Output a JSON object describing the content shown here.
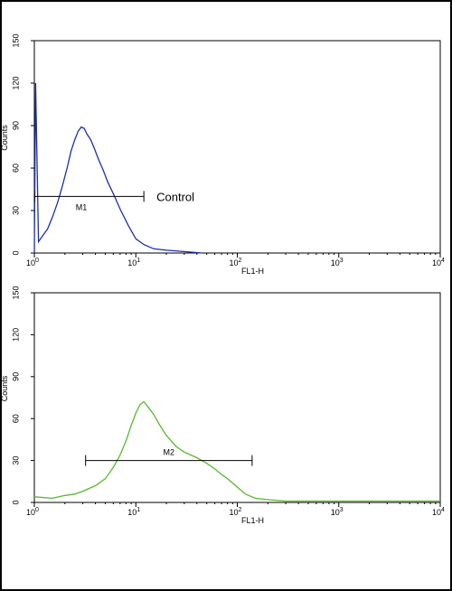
{
  "chart_data": [
    {
      "type": "line",
      "title": "",
      "xlabel": "FL1-H",
      "ylabel": "Counts",
      "x_scale": "log",
      "xlim": [
        1,
        10000
      ],
      "ylim": [
        0,
        150
      ],
      "yticks": [
        "0",
        "30",
        "60",
        "90",
        "120",
        "150"
      ],
      "xticks": [
        {
          "base": "10",
          "exp": "0"
        },
        {
          "base": "10",
          "exp": "1"
        },
        {
          "base": "10",
          "exp": "2"
        },
        {
          "base": "10",
          "exp": "3"
        },
        {
          "base": "10",
          "exp": "4"
        }
      ],
      "series": [
        {
          "color": "#1f2fa8",
          "x": [
            1.0,
            1.03,
            1.1,
            1.2,
            1.35,
            1.5,
            1.7,
            1.9,
            2.1,
            2.3,
            2.5,
            2.7,
            2.9,
            3.1,
            3.3,
            3.6,
            3.9,
            4.3,
            4.8,
            5.3,
            6.0,
            7.0,
            8.5,
            10,
            12,
            15,
            20,
            30,
            45
          ],
          "y": [
            0,
            120,
            8,
            12,
            17,
            25,
            36,
            48,
            60,
            72,
            80,
            86,
            89,
            88,
            84,
            80,
            74,
            66,
            58,
            50,
            42,
            31,
            19,
            10,
            6,
            3,
            2,
            1,
            0
          ]
        }
      ],
      "markers": [
        {
          "label": "M1",
          "x_start": 1.0,
          "x_end": 12,
          "y": 40
        }
      ],
      "annotation": "Control"
    },
    {
      "type": "line",
      "title": "",
      "xlabel": "FL1-H",
      "ylabel": "Counts",
      "x_scale": "log",
      "xlim": [
        1,
        10000
      ],
      "ylim": [
        0,
        150
      ],
      "yticks": [
        "0",
        "30",
        "60",
        "90",
        "120",
        "150"
      ],
      "xticks": [
        {
          "base": "10",
          "exp": "0"
        },
        {
          "base": "10",
          "exp": "1"
        },
        {
          "base": "10",
          "exp": "2"
        },
        {
          "base": "10",
          "exp": "3"
        },
        {
          "base": "10",
          "exp": "4"
        }
      ],
      "series": [
        {
          "color": "#5ab82c",
          "x": [
            1.0,
            1.5,
            2.0,
            2.5,
            3.0,
            4.0,
            5.0,
            6.0,
            7.0,
            8.0,
            9.0,
            10,
            11,
            12,
            13,
            15,
            17,
            20,
            25,
            30,
            40,
            50,
            60,
            70,
            80,
            100,
            120,
            150,
            200,
            300,
            500,
            1000,
            3000,
            10000
          ],
          "y": [
            4,
            3,
            5,
            6,
            8,
            12,
            17,
            25,
            34,
            44,
            55,
            64,
            70,
            72,
            69,
            63,
            56,
            48,
            40,
            36,
            32,
            28,
            24,
            20,
            17,
            11,
            6,
            3,
            2,
            1,
            1,
            1,
            1,
            1
          ]
        }
      ],
      "markers": [
        {
          "label": "M2",
          "x_start": 3.2,
          "x_end": 140,
          "y": 30
        }
      ]
    }
  ]
}
